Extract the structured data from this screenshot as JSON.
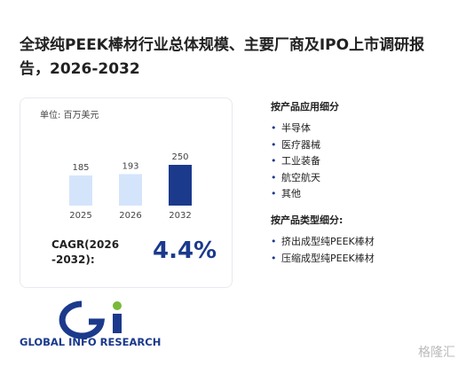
{
  "title": "全球纯PEEK棒材行业总体规模、主要厂商及IPO上市调研报告，2026-2032",
  "chart_data": {
    "type": "bar",
    "unit_label": "单位: 百万美元",
    "categories": [
      "2025",
      "2026",
      "2032"
    ],
    "values": [
      185,
      193,
      250
    ],
    "colors": [
      "#d4e5fb",
      "#d4e5fb",
      "#1b3a8c"
    ]
  },
  "cagr": {
    "label": "CAGR(2026-2032):",
    "value": "4.4%"
  },
  "segments": [
    {
      "title": "按产品应用细分",
      "items": [
        "半导体",
        "医疗器械",
        "工业装备",
        "航空航天",
        "其他"
      ]
    },
    {
      "title": "按产品类型细分:",
      "items": [
        "挤出成型纯PEEK棒材",
        "压缩成型纯PEEK棒材"
      ]
    }
  ],
  "logo": {
    "text": "GLOBAL INFO RESEARCH"
  },
  "watermark": "格隆汇"
}
